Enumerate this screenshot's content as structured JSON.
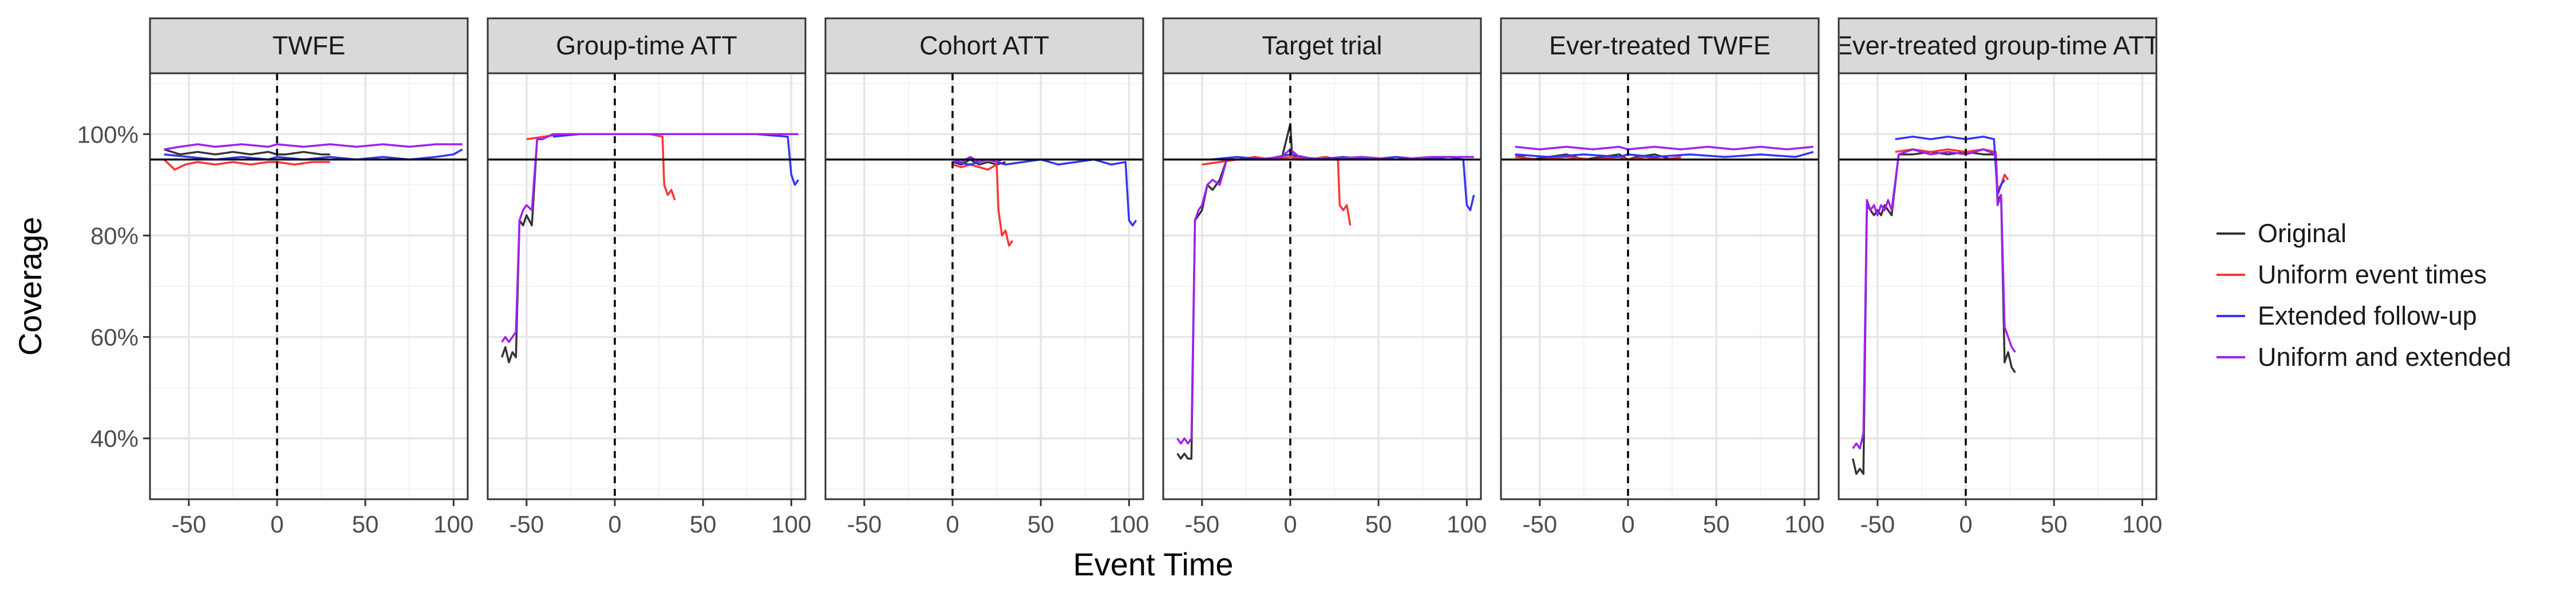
{
  "chart_data": {
    "type": "line",
    "xlabel": "Event Time",
    "ylabel": "Coverage",
    "xlim": [
      -72,
      108
    ],
    "ylim": [
      0.28,
      1.12
    ],
    "x_ticks": [
      -50,
      0,
      50,
      100
    ],
    "x_tick_labels": [
      "-50",
      "0",
      "50",
      "100"
    ],
    "y_ticks": [
      0.4,
      0.6,
      0.8,
      1.0
    ],
    "y_tick_labels": [
      "40%",
      "60%",
      "80%",
      "100%"
    ],
    "reference_line_y": 0.95,
    "reference_line_x": 0,
    "grid": true,
    "legend_position": "right",
    "series_colors": {
      "Original": "#333333",
      "Uniform event times": "#ff3333",
      "Extended follow-up": "#3333ff",
      "Uniform and extended": "#a020f0"
    },
    "legend": [
      "Original",
      "Uniform event times",
      "Extended follow-up",
      "Uniform and extended"
    ],
    "panels": [
      {
        "title": "TWFE",
        "series": [
          {
            "name": "Original",
            "x": [
              -64,
              -55,
              -45,
              -35,
              -25,
              -15,
              -5,
              0,
              5,
              15,
              25,
              30
            ],
            "y": [
              0.97,
              0.96,
              0.965,
              0.96,
              0.965,
              0.96,
              0.965,
              0.96,
              0.96,
              0.965,
              0.96,
              0.96
            ]
          },
          {
            "name": "Uniform event times",
            "x": [
              -64,
              -58,
              -52,
              -45,
              -35,
              -25,
              -15,
              -5,
              0,
              10,
              20,
              30
            ],
            "y": [
              0.95,
              0.93,
              0.94,
              0.945,
              0.94,
              0.945,
              0.94,
              0.945,
              0.945,
              0.94,
              0.945,
              0.945
            ]
          },
          {
            "name": "Extended follow-up",
            "x": [
              -64,
              -50,
              -35,
              -20,
              -5,
              0,
              15,
              30,
              45,
              60,
              75,
              90,
              100,
              105
            ],
            "y": [
              0.96,
              0.955,
              0.95,
              0.955,
              0.95,
              0.955,
              0.95,
              0.955,
              0.95,
              0.955,
              0.95,
              0.955,
              0.96,
              0.97
            ]
          },
          {
            "name": "Uniform and extended",
            "x": [
              -64,
              -55,
              -45,
              -35,
              -20,
              -5,
              0,
              15,
              30,
              45,
              60,
              75,
              90,
              105
            ],
            "y": [
              0.97,
              0.975,
              0.98,
              0.975,
              0.98,
              0.975,
              0.98,
              0.975,
              0.98,
              0.975,
              0.98,
              0.975,
              0.98,
              0.98
            ]
          }
        ]
      },
      {
        "title": "Group-time ATT",
        "series": [
          {
            "name": "Original",
            "x": [
              -64,
              -62,
              -60,
              -58,
              -56,
              -54,
              -52,
              -50,
              -47,
              -44,
              -41,
              -38,
              -35,
              -30,
              -20,
              -10,
              0,
              10,
              20,
              28
            ],
            "y": [
              0.56,
              0.58,
              0.55,
              0.57,
              0.56,
              0.83,
              0.82,
              0.84,
              0.82,
              0.99,
              0.99,
              0.995,
              1.0,
              1.0,
              1.0,
              1.0,
              1.0,
              1.0,
              1.0,
              1.0
            ]
          },
          {
            "name": "Uniform event times",
            "x": [
              -50,
              -40,
              -30,
              -20,
              -10,
              0,
              10,
              20,
              27,
              28,
              30,
              32,
              34
            ],
            "y": [
              0.99,
              0.995,
              1.0,
              1.0,
              1.0,
              1.0,
              1.0,
              1.0,
              0.995,
              0.9,
              0.88,
              0.89,
              0.87
            ]
          },
          {
            "name": "Extended follow-up",
            "x": [
              -35,
              -20,
              0,
              20,
              40,
              60,
              80,
              98,
              100,
              102,
              104
            ],
            "y": [
              0.995,
              1.0,
              1.0,
              1.0,
              1.0,
              1.0,
              1.0,
              0.995,
              0.92,
              0.9,
              0.91
            ]
          },
          {
            "name": "Uniform and extended",
            "x": [
              -64,
              -62,
              -60,
              -58,
              -56,
              -54,
              -52,
              -50,
              -47,
              -44,
              -41,
              -38,
              -35,
              -20,
              0,
              20,
              40,
              60,
              80,
              104
            ],
            "y": [
              0.59,
              0.6,
              0.59,
              0.6,
              0.61,
              0.83,
              0.85,
              0.86,
              0.85,
              0.99,
              0.99,
              0.995,
              1.0,
              1.0,
              1.0,
              1.0,
              1.0,
              1.0,
              1.0,
              1.0
            ]
          }
        ]
      },
      {
        "title": "Cohort ATT",
        "series": [
          {
            "name": "Original",
            "x": [
              0,
              5,
              10,
              15,
              20,
              25,
              30
            ],
            "y": [
              0.945,
              0.94,
              0.95,
              0.94,
              0.945,
              0.94,
              0.945
            ]
          },
          {
            "name": "Uniform event times",
            "x": [
              0,
              5,
              10,
              15,
              20,
              25,
              26,
              28,
              30,
              32,
              34
            ],
            "y": [
              0.94,
              0.935,
              0.94,
              0.935,
              0.93,
              0.94,
              0.85,
              0.8,
              0.81,
              0.78,
              0.79
            ]
          },
          {
            "name": "Extended follow-up",
            "x": [
              0,
              10,
              20,
              30,
              40,
              50,
              60,
              70,
              80,
              90,
              98,
              100,
              102,
              104
            ],
            "y": [
              0.945,
              0.94,
              0.95,
              0.94,
              0.945,
              0.95,
              0.94,
              0.945,
              0.95,
              0.94,
              0.945,
              0.83,
              0.82,
              0.83
            ]
          },
          {
            "name": "Uniform and extended",
            "x": [
              0,
              5,
              10,
              15,
              20,
              25,
              28
            ],
            "y": [
              0.95,
              0.945,
              0.955,
              0.945,
              0.95,
              0.945,
              0.95
            ]
          }
        ]
      },
      {
        "title": "Target trial",
        "series": [
          {
            "name": "Original",
            "x": [
              -64,
              -62,
              -60,
              -58,
              -56,
              -54,
              -52,
              -50,
              -47,
              -44,
              -40,
              -36,
              -32,
              -25,
              -15,
              -5,
              0,
              1,
              5,
              15,
              25,
              30
            ],
            "y": [
              0.37,
              0.36,
              0.37,
              0.36,
              0.36,
              0.83,
              0.84,
              0.85,
              0.9,
              0.89,
              0.91,
              0.95,
              0.95,
              0.95,
              0.95,
              0.95,
              1.02,
              0.96,
              0.95,
              0.95,
              0.95,
              0.95
            ]
          },
          {
            "name": "Uniform event times",
            "x": [
              -50,
              -40,
              -30,
              -20,
              -10,
              0,
              10,
              20,
              27,
              28,
              30,
              32,
              34
            ],
            "y": [
              0.94,
              0.945,
              0.95,
              0.955,
              0.95,
              0.955,
              0.95,
              0.955,
              0.95,
              0.86,
              0.85,
              0.86,
              0.82
            ]
          },
          {
            "name": "Extended follow-up",
            "x": [
              -45,
              -30,
              -15,
              0,
              15,
              30,
              45,
              60,
              75,
              90,
              98,
              100,
              102,
              104
            ],
            "y": [
              0.95,
              0.955,
              0.95,
              0.96,
              0.95,
              0.955,
              0.95,
              0.955,
              0.95,
              0.955,
              0.95,
              0.86,
              0.85,
              0.88
            ]
          },
          {
            "name": "Uniform and extended",
            "x": [
              -64,
              -62,
              -60,
              -58,
              -56,
              -54,
              -52,
              -50,
              -47,
              -44,
              -40,
              -36,
              -32,
              -20,
              -5,
              0,
              5,
              20,
              40,
              60,
              80,
              104
            ],
            "y": [
              0.4,
              0.39,
              0.4,
              0.39,
              0.4,
              0.83,
              0.85,
              0.86,
              0.9,
              0.91,
              0.9,
              0.95,
              0.95,
              0.95,
              0.955,
              0.97,
              0.955,
              0.95,
              0.955,
              0.95,
              0.955,
              0.955
            ]
          }
        ]
      },
      {
        "title": "Ever-treated TWFE",
        "series": [
          {
            "name": "Original",
            "x": [
              -64,
              -55,
              -45,
              -35,
              -25,
              -15,
              -5,
              0,
              5,
              15,
              25,
              30
            ],
            "y": [
              0.96,
              0.95,
              0.955,
              0.96,
              0.95,
              0.955,
              0.96,
              0.95,
              0.955,
              0.96,
              0.95,
              0.955
            ]
          },
          {
            "name": "Uniform event times",
            "x": [
              -64,
              -50,
              -35,
              -20,
              -5,
              0,
              10,
              20,
              30
            ],
            "y": [
              0.955,
              0.95,
              0.955,
              0.95,
              0.955,
              0.95,
              0.955,
              0.95,
              0.955
            ]
          },
          {
            "name": "Extended follow-up",
            "x": [
              -64,
              -45,
              -25,
              -5,
              0,
              15,
              35,
              55,
              75,
              95,
              105
            ],
            "y": [
              0.96,
              0.955,
              0.96,
              0.955,
              0.96,
              0.955,
              0.96,
              0.955,
              0.96,
              0.955,
              0.965
            ]
          },
          {
            "name": "Uniform and extended",
            "x": [
              -64,
              -50,
              -35,
              -20,
              -5,
              0,
              15,
              30,
              45,
              60,
              75,
              90,
              105
            ],
            "y": [
              0.975,
              0.97,
              0.975,
              0.97,
              0.975,
              0.97,
              0.975,
              0.97,
              0.975,
              0.97,
              0.975,
              0.97,
              0.975
            ]
          }
        ]
      },
      {
        "title": "Ever-treated group-time ATT",
        "series": [
          {
            "name": "Original",
            "x": [
              -64,
              -62,
              -60,
              -58,
              -56,
              -54,
              -52,
              -50,
              -48,
              -46,
              -44,
              -42,
              -38,
              -30,
              -20,
              -10,
              0,
              10,
              17,
              18,
              20,
              22,
              24,
              26,
              28
            ],
            "y": [
              0.36,
              0.33,
              0.34,
              0.33,
              0.86,
              0.85,
              0.84,
              0.85,
              0.84,
              0.86,
              0.85,
              0.84,
              0.96,
              0.96,
              0.965,
              0.96,
              0.965,
              0.96,
              0.96,
              0.87,
              0.88,
              0.55,
              0.57,
              0.54,
              0.53
            ]
          },
          {
            "name": "Uniform event times",
            "x": [
              -40,
              -30,
              -20,
              -10,
              0,
              10,
              17,
              18,
              20,
              22,
              24
            ],
            "y": [
              0.965,
              0.97,
              0.965,
              0.97,
              0.965,
              0.97,
              0.965,
              0.89,
              0.9,
              0.92,
              0.91
            ]
          },
          {
            "name": "Extended follow-up",
            "x": [
              -40,
              -30,
              -20,
              -10,
              0,
              10,
              16,
              18,
              20,
              22
            ],
            "y": [
              0.99,
              0.995,
              0.99,
              0.995,
              0.99,
              0.995,
              0.99,
              0.88,
              0.9,
              0.91
            ]
          },
          {
            "name": "Uniform and extended",
            "x": [
              -64,
              -62,
              -60,
              -58,
              -56,
              -54,
              -52,
              -50,
              -48,
              -46,
              -44,
              -42,
              -38,
              -30,
              -20,
              -10,
              0,
              10,
              17,
              18,
              20,
              22,
              24,
              26,
              28
            ],
            "y": [
              0.38,
              0.39,
              0.38,
              0.41,
              0.87,
              0.85,
              0.86,
              0.84,
              0.86,
              0.85,
              0.87,
              0.85,
              0.96,
              0.97,
              0.96,
              0.965,
              0.96,
              0.97,
              0.96,
              0.86,
              0.88,
              0.62,
              0.6,
              0.58,
              0.57
            ]
          }
        ]
      }
    ]
  }
}
